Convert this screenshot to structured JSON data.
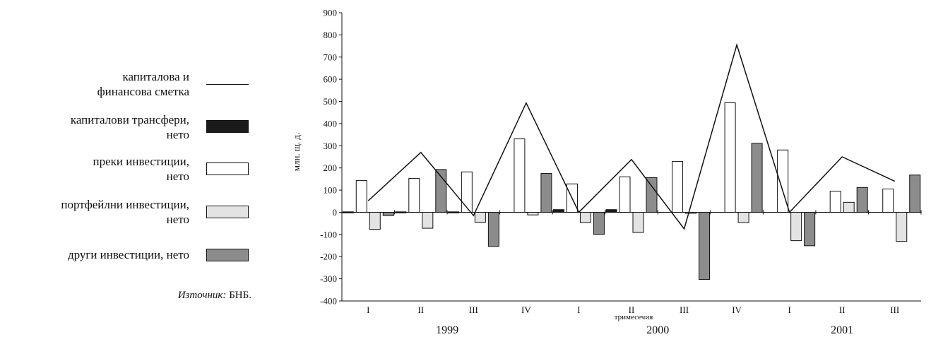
{
  "legend": {
    "items": [
      {
        "label_line1": "капиталова и",
        "label_line2": "финансова сметка",
        "symbol": "line",
        "color": "#111111"
      },
      {
        "label_line1": "капиталови трансфери,",
        "label_line2": "нето",
        "symbol": "box",
        "color": "#1a1a1a"
      },
      {
        "label_line1": "преки инвестиции,",
        "label_line2": "нето",
        "symbol": "box",
        "color": "#ffffff"
      },
      {
        "label_line1": "портфейлни инвестиции,",
        "label_line2": "нето",
        "symbol": "box",
        "color": "#e3e3e3"
      },
      {
        "label_line1": "други инвестиции, нето",
        "label_line2": "",
        "symbol": "box",
        "color": "#8c8c8c"
      }
    ],
    "source_prefix": "Източник:",
    "source_text": "БНБ."
  },
  "chart_data": {
    "type": "bar",
    "ylabel": "млн. щ. д.",
    "xlabel": "тримесечия",
    "ylim": [
      -400,
      900
    ],
    "yticks": [
      900,
      800,
      700,
      600,
      500,
      400,
      300,
      200,
      100,
      0,
      -100,
      -200,
      -300,
      -400
    ],
    "categories": [
      "I",
      "II",
      "III",
      "IV",
      "I",
      "II",
      "III",
      "IV",
      "I",
      "II",
      "III"
    ],
    "years": [
      {
        "label": "1999",
        "span": [
          0,
          3
        ]
      },
      {
        "label": "2000",
        "span": [
          4,
          7
        ]
      },
      {
        "label": "2001",
        "span": [
          8,
          10
        ]
      }
    ],
    "series": [
      {
        "name": "капиталови трансфери, нето",
        "kind": "bar",
        "color": "#1a1a1a",
        "values": [
          2,
          2,
          2,
          0,
          12,
          12,
          0,
          0,
          0,
          0,
          0
        ]
      },
      {
        "name": "преки инвестиции, нето",
        "kind": "bar",
        "color": "#ffffff",
        "values": [
          143,
          153,
          182,
          331,
          128,
          160,
          229,
          494,
          281,
          95,
          105
        ]
      },
      {
        "name": "портфейлни инвестиции, нето",
        "kind": "bar",
        "color": "#e3e3e3",
        "values": [
          -77,
          -72,
          -45,
          -12,
          -46,
          -91,
          -3,
          -46,
          -128,
          45,
          -131
        ]
      },
      {
        "name": "други инвестиции, нето",
        "kind": "bar",
        "color": "#8c8c8c",
        "values": [
          -15,
          193,
          -154,
          175,
          -100,
          156,
          -303,
          311,
          -151,
          112,
          168
        ]
      },
      {
        "name": "капиталова и финансова сметка",
        "kind": "line",
        "color": "#111111",
        "values": [
          52,
          270,
          -15,
          493,
          0,
          238,
          -75,
          755,
          0,
          250,
          140
        ]
      }
    ]
  }
}
